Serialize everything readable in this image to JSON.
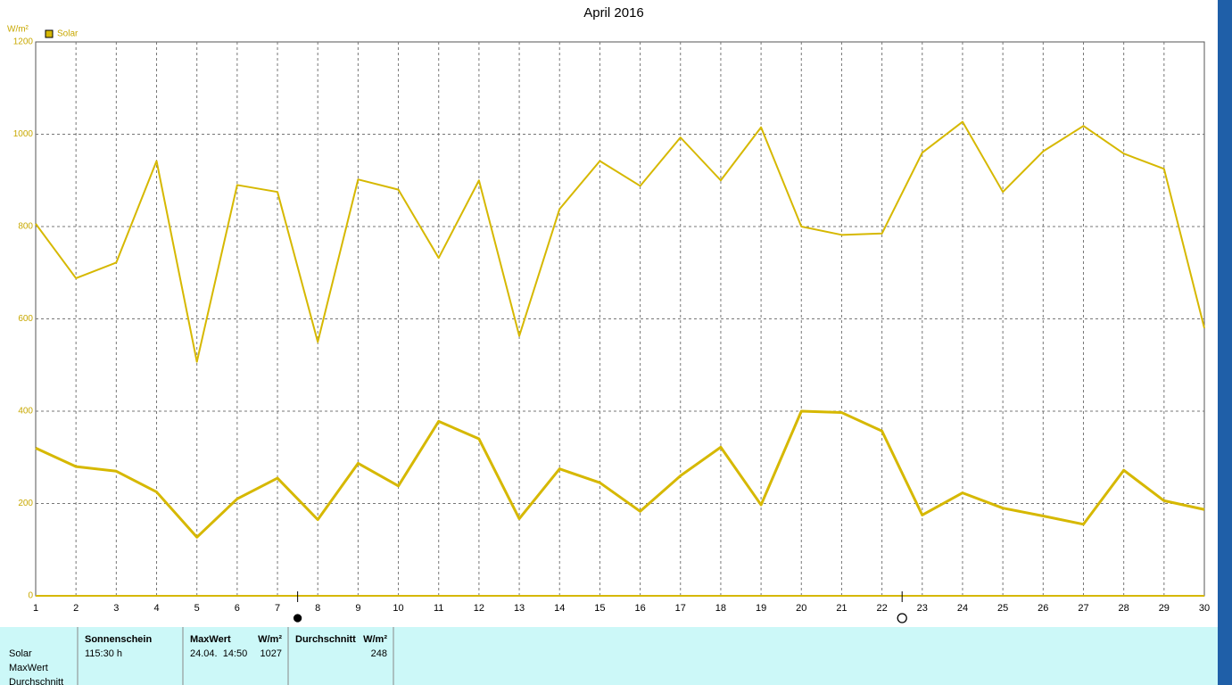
{
  "chart_data": {
    "type": "line",
    "title": "April 2016",
    "y_label": "W/m²",
    "legend": "Solar",
    "x": [
      1,
      2,
      3,
      4,
      5,
      6,
      7,
      8,
      9,
      10,
      11,
      12,
      13,
      14,
      15,
      16,
      17,
      18,
      19,
      20,
      21,
      22,
      23,
      24,
      25,
      26,
      27,
      28,
      29,
      30
    ],
    "xlim": [
      1,
      30
    ],
    "xticks": [
      1,
      2,
      3,
      4,
      5,
      6,
      7,
      8,
      9,
      10,
      11,
      12,
      13,
      14,
      15,
      16,
      17,
      18,
      19,
      20,
      21,
      22,
      23,
      24,
      25,
      26,
      27,
      28,
      29,
      30
    ],
    "ylim": [
      0,
      1200
    ],
    "yticks": [
      0,
      200,
      400,
      600,
      800,
      1000,
      1200
    ],
    "grid": true,
    "series": [
      {
        "name": "Solar",
        "color": "#d6b800",
        "width": 2,
        "values": [
          806,
          688,
          722,
          942,
          507,
          890,
          875,
          550,
          902,
          880,
          732,
          900,
          563,
          838,
          942,
          888,
          993,
          900,
          1015,
          800,
          782,
          785,
          960,
          1027,
          875,
          963,
          1018,
          958,
          925,
          580
        ]
      },
      {
        "color": "#d6b800",
        "width": 3,
        "values": [
          320,
          280,
          270,
          225,
          127,
          210,
          255,
          165,
          287,
          238,
          378,
          340,
          167,
          275,
          245,
          183,
          260,
          322,
          197,
          400,
          397,
          357,
          175,
          223,
          190,
          173,
          155,
          272,
          206,
          187
        ]
      }
    ],
    "moon_phases": [
      {
        "x": 7.5,
        "phase": "new"
      },
      {
        "x": 22.5,
        "phase": "full"
      }
    ]
  },
  "table": {
    "row_labels": [
      "Solar",
      "MaxWert",
      "Durchschnitt"
    ],
    "sunshine": {
      "header": "Sonnenschein",
      "value": "115:30 h"
    },
    "max": {
      "header": "MaxWert",
      "unit": "W/m²",
      "time": "24.04.  14:50",
      "value": 1027
    },
    "average": {
      "header": "Durchschnitt",
      "unit": "W/m²",
      "value": 248
    }
  }
}
